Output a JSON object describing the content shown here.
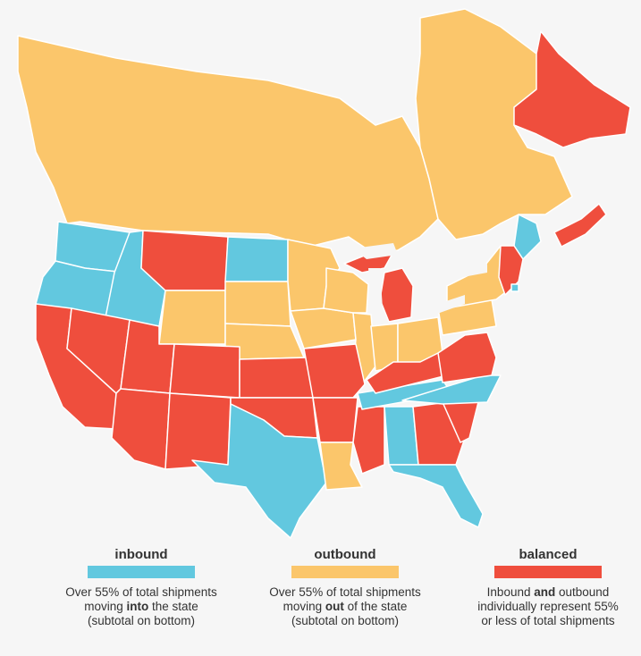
{
  "colors": {
    "inbound": "#62c8df",
    "outbound": "#fbc66b",
    "balanced": "#ef4e3d",
    "border": "#ffffff",
    "background": "#f6f6f6"
  },
  "legend": [
    {
      "key": "inbound",
      "title": "inbound",
      "line1_pre": "Over 55% of total shipments",
      "line2_pre": "moving ",
      "line2_bold": "into",
      "line2_post": " the state",
      "line3": "(subtotal on bottom)"
    },
    {
      "key": "outbound",
      "title": "outbound",
      "line1_pre": "Over 55% of total shipments",
      "line2_pre": "moving ",
      "line2_bold": "out",
      "line2_post": " of the state",
      "line3": "(subtotal on bottom)"
    },
    {
      "key": "balanced",
      "title": "balanced",
      "line1_pre": "Inbound ",
      "line1_bold": "and",
      "line1_post": " outbound",
      "line2_pre": "individually represent 55%",
      "line3": "or less of total shipments"
    }
  ],
  "regions": {
    "canada_west": "outbound",
    "canada_quebec": "outbound",
    "newfoundland_labrador": "balanced",
    "nova_scotia": "balanced",
    "washington": "inbound",
    "oregon": "inbound",
    "idaho": "inbound",
    "montana": "balanced",
    "north_dakota": "inbound",
    "wyoming": "outbound",
    "south_dakota": "outbound",
    "nebraska": "outbound",
    "minnesota": "outbound",
    "iowa": "outbound",
    "wisconsin": "outbound",
    "illinois": "outbound",
    "indiana": "outbound",
    "ohio": "outbound",
    "pennsylvania": "outbound",
    "new_york": "outbound",
    "michigan": "balanced",
    "michigan_up": "balanced",
    "california": "balanced",
    "nevada": "balanced",
    "utah": "balanced",
    "arizona": "balanced",
    "colorado": "balanced",
    "new_mexico": "balanced",
    "kansas": "balanced",
    "oklahoma": "balanced",
    "missouri": "balanced",
    "arkansas": "balanced",
    "kentucky": "balanced",
    "virginia": "balanced",
    "mississippi": "balanced",
    "georgia": "balanced",
    "south_carolina": "balanced",
    "texas": "inbound",
    "louisiana": "outbound",
    "tennessee": "inbound",
    "north_carolina": "inbound",
    "alabama": "inbound",
    "florida": "inbound",
    "maine": "inbound",
    "new_england": "balanced",
    "rhode_island": "inbound"
  }
}
